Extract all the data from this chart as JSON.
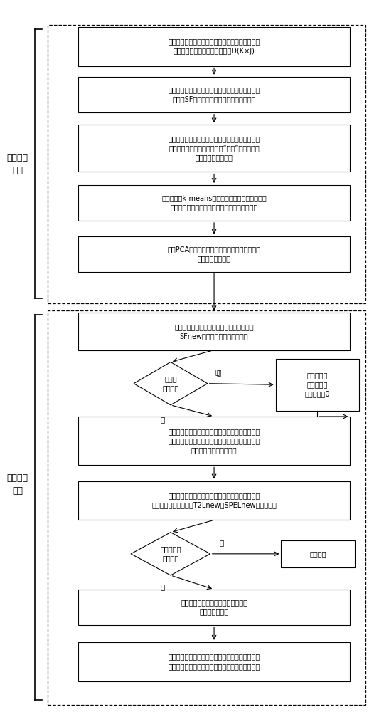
{
  "fig_width": 5.33,
  "fig_height": 10.0,
  "bg_color": "#ffffff",
  "offline_label": "离线建模\n过程",
  "online_label": "在线监测\n过程",
  "b1_text": "根据设备运行机理确定的监测变量，采集某一机台\n的设备运行数据，获得原始数据D(K×J)",
  "b2_text": "基于车速检测值，采用滑动时间窗口方法计算稳定\n度因子SF，进行稳定工况和过渡工况的识别",
  "b3_text": "采用平滑滤波处理稳定工况滑动时间窗口内数据，\n获得移动平均数据，并将其中“车速”变量值大于\n阀值的作为有效数据",
  "b4_text": "采用自适应k-means聚类方法对有效数据的相似度\n进行聚类分析，获得每一种稳定工况的建模数据",
  "b5_text": "采用PCA方法建立每一种稳定工况的离线监测模\n型，并求取控制限",
  "b6_text": "计算当前滑动时间窗口内数据的稳定度因子\nSFnew，判断其所处的工况类型",
  "d1_text": "是否为\n稳定工况",
  "b7_text": "将当前时刻\n两个监测统\n计量赋值为0",
  "b8_text": "采用平滑滤获得当前滑动时间窗口内的移动平均数\n据，并计算其与各个聚类中心的欧式距离，判断其\n对应的稳定工况监测模型",
  "b9_text": "利用对应监测模型的均值和标准差进行移动平均数\n据的标准化处理，计算T2Lnew和SPELnew监测统计量",
  "d2_text": "两个统计量\n有无超限",
  "b10_text": "正常工况",
  "b11_text": "依据首次故障报警时间的定义，判断\n故障发生的时间",
  "b12_text": "在首次故障报警时刻，计算各过程变量对超限统计\n量的贡献，依据贡献大小确定引起故障的原因变量"
}
